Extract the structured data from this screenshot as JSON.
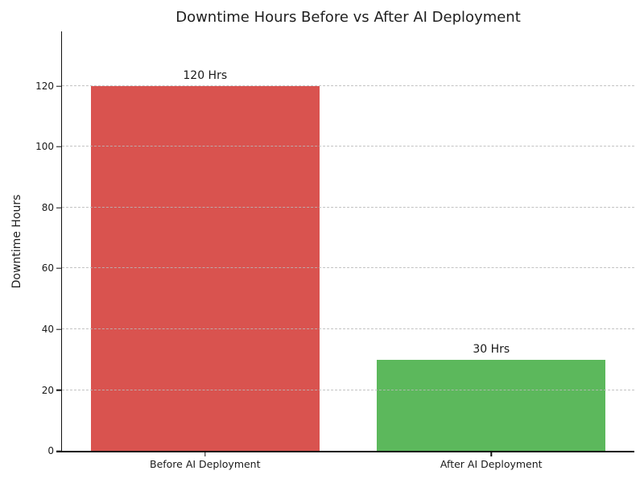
{
  "chart_data": {
    "type": "bar",
    "title": "Downtime Hours Before vs After AI Deployment",
    "xlabel": "",
    "ylabel": "Downtime Hours",
    "categories": [
      "Before AI Deployment",
      "After AI Deployment"
    ],
    "values": [
      120,
      30
    ],
    "value_labels": [
      "120 Hrs",
      "30 Hrs"
    ],
    "bar_colors": [
      "#d9534f",
      "#5cb85c"
    ],
    "yticks": [
      0,
      20,
      40,
      60,
      80,
      100,
      120
    ],
    "ylim": [
      0,
      138
    ],
    "bar_width_fraction": 0.8,
    "grid": "horizontal-dashed-over-bars",
    "grid_color": "#c9c9c9",
    "legend": "none",
    "text_color": "#1a1a1a",
    "background_color": "#ffffff"
  }
}
